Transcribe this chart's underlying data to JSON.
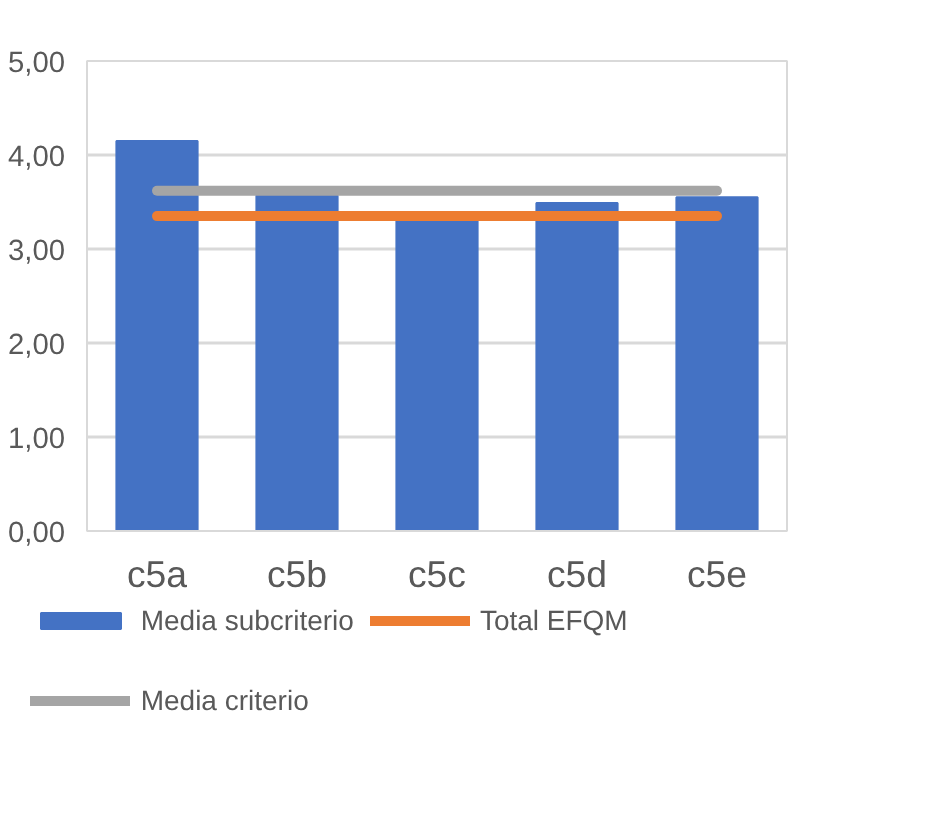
{
  "chart_data": {
    "type": "bar",
    "categories": [
      "c5a",
      "c5b",
      "c5c",
      "c5d",
      "c5e"
    ],
    "series": [
      {
        "name": "Media subcriterio",
        "color": "#4472c4",
        "values": [
          4.15,
          3.57,
          3.35,
          3.49,
          3.55
        ]
      },
      {
        "name": "Total EFQM",
        "type": "line",
        "color": "#ed7d31",
        "values": [
          3.35,
          3.35,
          3.35,
          3.35,
          3.35
        ]
      },
      {
        "name": "Media criterio",
        "type": "line",
        "color": "#a5a5a5",
        "values": [
          3.62,
          3.62,
          3.62,
          3.62,
          3.62
        ]
      }
    ],
    "ylim": [
      0,
      5
    ],
    "yticks": [
      {
        "value": 0,
        "label": "0,00"
      },
      {
        "value": 1,
        "label": "1,00"
      },
      {
        "value": 2,
        "label": "2,00"
      },
      {
        "value": 3,
        "label": "3,00"
      },
      {
        "value": 4,
        "label": "4,00"
      },
      {
        "value": 5,
        "label": "5,00"
      }
    ],
    "grid": "y",
    "legend": "bottom"
  }
}
